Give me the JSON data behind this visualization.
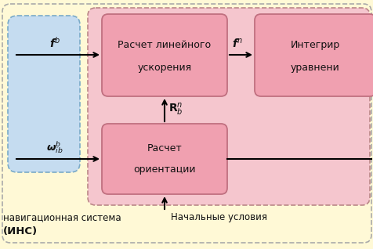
{
  "bg_outer": "#FFF9D6",
  "bg_pink_region": "#F5C6CE",
  "bg_blue_box": "#C5DCF0",
  "box_pink_face": "#F0A0B0",
  "box_pink_edge": "#C07080",
  "blue_edge": "#7AAAC8",
  "outer_edge": "#AAAAAA",
  "pink_edge": "#BB8888",
  "box1_text1": "Расчет линейного",
  "box1_text2": "ускорения",
  "box2_text1": "Расчет",
  "box2_text2": "ориентации",
  "box3_text1": "Интегрир",
  "box3_text2": "уравнени",
  "label_ins1": "навигационная система",
  "label_ins2": "(ИНС)",
  "label_init": "Начальные условия"
}
